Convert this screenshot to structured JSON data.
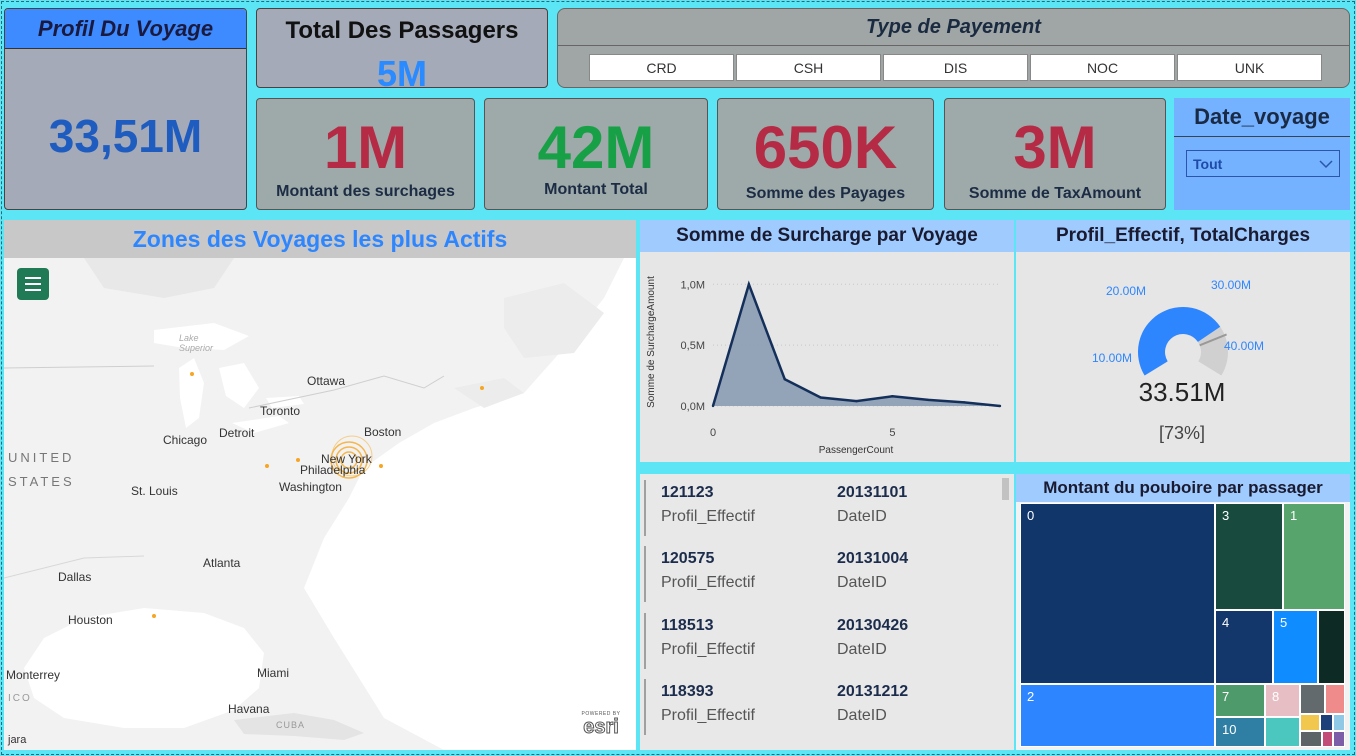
{
  "profil": {
    "title": "Profil Du Voyage",
    "value": "33,51M"
  },
  "total_passagers": {
    "label": "Total Des Passagers",
    "value": "5M"
  },
  "type_payement": {
    "title": "Type de Payement",
    "options": [
      "CRD",
      "CSH",
      "DIS",
      "NOC",
      "UNK"
    ]
  },
  "kpis": [
    {
      "value": "1M",
      "label": "Montant des surchages"
    },
    {
      "value": "42M",
      "label": "Montant Total"
    },
    {
      "value": "650K",
      "label": "Somme des Payages"
    },
    {
      "value": "3M",
      "label": "Somme de TaxAmount"
    }
  ],
  "date_voyage": {
    "title": "Date_voyage",
    "selected": "Tout"
  },
  "map": {
    "title": "Zones des Voyages les plus Actifs",
    "labels": {
      "lake_superior": "Lake Superior",
      "ottawa": "Ottawa",
      "toronto": "Toronto",
      "chicago": "Chicago",
      "detroit": "Detroit",
      "boston": "Boston",
      "new_york": "New York",
      "philadelphia": "Philadelphia",
      "washington": "Washington",
      "st_louis": "St. Louis",
      "united": "UNITED",
      "states": "STATES",
      "atlanta": "Atlanta",
      "dallas": "Dallas",
      "houston": "Houston",
      "miami": "Miami",
      "havana": "Havana",
      "cuba": "CUBA",
      "monterrey": "Monterrey",
      "mexico": "ICO",
      "attribution": "jara",
      "esri": "esri",
      "powered_by": "POWERED BY"
    }
  },
  "line_chart": {
    "title": "Somme de Surcharge par Voyage",
    "chart_data": {
      "type": "area",
      "x": [
        0,
        1,
        2,
        3,
        4,
        5,
        6,
        7,
        8
      ],
      "values": [
        0.0,
        1.0,
        0.22,
        0.07,
        0.04,
        0.08,
        0.05,
        0.03,
        0.0
      ],
      "xlabel": "PassengerCount",
      "ylabel": "Somme de SurchargeAmount",
      "y_ticks": [
        "0,0M",
        "0,5M",
        "1,0M"
      ],
      "x_ticks": [
        "0",
        "5"
      ],
      "ylim": [
        0,
        1.15
      ],
      "xlim": [
        0,
        8
      ]
    }
  },
  "gauge": {
    "title": "Profil_Effectif, TotalCharges",
    "value": "33.51M",
    "percent": "[73%]",
    "fraction": 0.73,
    "ticks": [
      "10.00M",
      "20.00M",
      "30.00M",
      "40.00M"
    ],
    "color": "#2e86ff"
  },
  "cards": [
    {
      "profil": "121123",
      "profil_label": "Profil_Effectif",
      "date": "20131101",
      "date_label": "DateID"
    },
    {
      "profil": "120575",
      "profil_label": "Profil_Effectif",
      "date": "20131004",
      "date_label": "DateID"
    },
    {
      "profil": "118513",
      "profil_label": "Profil_Effectif",
      "date": "20130426",
      "date_label": "DateID"
    },
    {
      "profil": "118393",
      "profil_label": "Profil_Effectif",
      "date": "20131212",
      "date_label": "DateID"
    }
  ],
  "treemap": {
    "title": "Montant du pouboire par passager",
    "labels": [
      "0",
      "3",
      "1",
      "4",
      "5",
      "2",
      "7",
      "8",
      "10"
    ]
  }
}
